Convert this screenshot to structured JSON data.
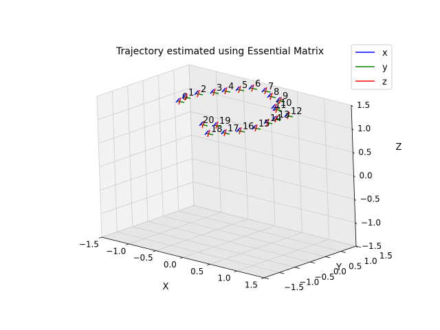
{
  "chart_data": {
    "type": "3d-line",
    "title": "Trajectory estimated using Essential Matrix",
    "xlabel": "X",
    "ylabel": "Y",
    "zlabel": "Z",
    "xlim": [
      -1.5,
      1.5
    ],
    "ylim": [
      -1.5,
      1.5
    ],
    "zlim": [
      -1.5,
      1.5
    ],
    "x_ticks": [
      "−1.5",
      "−1.0",
      "−0.5",
      "0.0",
      "0.5",
      "1.0",
      "1.5"
    ],
    "y_ticks": [
      "−1.5",
      "−1.0",
      "−0.5",
      "0.0",
      "0.5",
      "1.0",
      "1.5"
    ],
    "z_ticks": [
      "−1.5",
      "−1.0",
      "−0.5",
      "0.0",
      "0.5",
      "1.0",
      "1.5"
    ],
    "grid": true,
    "legend_position": "top-right",
    "legend": [
      {
        "name": "x",
        "color": "#0000ff"
      },
      {
        "name": "y",
        "color": "#008000"
      },
      {
        "name": "z",
        "color": "#ff0000"
      }
    ],
    "pose_labels": [
      "0",
      "1",
      "2",
      "3",
      "4",
      "5",
      "6",
      "7",
      "8",
      "9",
      "10",
      "11",
      "12",
      "13",
      "14",
      "15",
      "16",
      "17",
      "18",
      "19",
      "20"
    ],
    "pose_axes_note": "Each numbered pose is drawn as a short coordinate triad with x (blue), y (green) and z (red) segments."
  }
}
